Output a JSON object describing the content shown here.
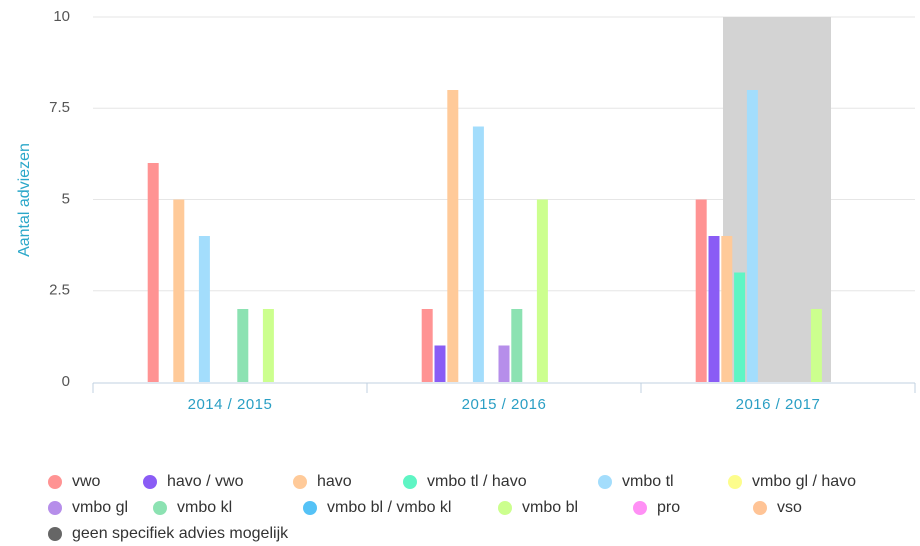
{
  "chart_data": {
    "type": "bar",
    "y_label": "Aantal adviezen",
    "categories": [
      "2014 / 2015",
      "2015 / 2016",
      "2016 / 2017"
    ],
    "ylim": [
      0,
      10
    ],
    "yticks": [
      0,
      2.5,
      5,
      7.5,
      10
    ],
    "grid": true,
    "series": [
      {
        "name": "vwo",
        "color": "#ff9393",
        "values": [
          6,
          2,
          5
        ]
      },
      {
        "name": "havo / vwo",
        "color": "#8a5cf5",
        "values": [
          0,
          1,
          4
        ]
      },
      {
        "name": "havo",
        "color": "#ffca99",
        "values": [
          5,
          8,
          4
        ]
      },
      {
        "name": "vmbo tl / havo",
        "color": "#5ff5c4",
        "values": [
          0,
          0,
          3
        ]
      },
      {
        "name": "vmbo tl",
        "color": "#a3ddfc",
        "values": [
          4,
          7,
          8
        ]
      },
      {
        "name": "vmbo gl / havo",
        "color": "#fdfd8c",
        "values": [
          0,
          0,
          0
        ]
      },
      {
        "name": "vmbo gl",
        "color": "#b68eea",
        "values": [
          0,
          1,
          0
        ]
      },
      {
        "name": "vmbo kl",
        "color": "#8ce2b2",
        "values": [
          2,
          2,
          0
        ]
      },
      {
        "name": "vmbo bl / vmbo kl",
        "color": "#55c2f6",
        "values": [
          0,
          0,
          0
        ]
      },
      {
        "name": "vmbo bl",
        "color": "#ccff8e",
        "values": [
          2,
          5,
          2
        ]
      },
      {
        "name": "pro",
        "color": "#ff90f5",
        "values": [
          0,
          0,
          0
        ]
      },
      {
        "name": "vso",
        "color": "#ffc496",
        "values": [
          0,
          0,
          0
        ]
      },
      {
        "name": "geen specifiek advies mogelijk",
        "color": "#666666",
        "values": [
          0,
          0,
          0
        ]
      }
    ]
  }
}
